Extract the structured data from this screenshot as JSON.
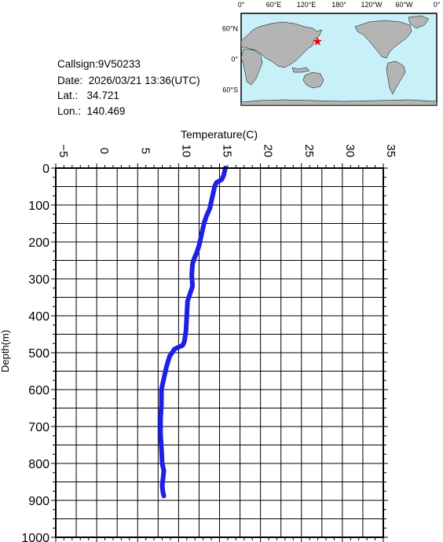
{
  "station": {
    "callsign_label": "Callsign:",
    "callsign": "9V50233",
    "date_label": "Date:",
    "date": "2026/03/21 13:36(UTC)",
    "lat_label": "Lat.:",
    "lat": "34.721",
    "lon_label": "Lon.:",
    "lon": "140.469"
  },
  "map": {
    "lon_labels": [
      "0°",
      "60°E",
      "120°E",
      "180°",
      "120°W",
      "60°W",
      "0°"
    ],
    "lat_labels": [
      "60°N",
      "0°",
      "60°S"
    ],
    "marker": {
      "lon": 140.469,
      "lat": 34.721,
      "symbol": "star",
      "color": "#ff0000"
    },
    "ocean_color": "#c8f0f8",
    "land_color": "#b4b4b4"
  },
  "chart_data": {
    "type": "line",
    "xlabel": "Temperature(C)",
    "ylabel": "Depth(m)",
    "xlim": [
      -5,
      35
    ],
    "ylim": [
      0,
      1000
    ],
    "y_inverted": true,
    "x_axis_position": "top",
    "xticks": [
      -5,
      0,
      5,
      10,
      15,
      20,
      25,
      30,
      35
    ],
    "yticks": [
      0,
      100,
      200,
      300,
      400,
      500,
      600,
      700,
      800,
      900,
      1000
    ],
    "grid": true,
    "series": [
      {
        "color": "#1f1fe6",
        "points": [
          [
            15.7,
            0
          ],
          [
            15.6,
            10
          ],
          [
            15.5,
            20
          ],
          [
            15.3,
            30
          ],
          [
            14.6,
            40
          ],
          [
            14.4,
            50
          ],
          [
            14.2,
            70
          ],
          [
            14.0,
            90
          ],
          [
            13.8,
            110
          ],
          [
            13.4,
            130
          ],
          [
            13.1,
            150
          ],
          [
            12.9,
            170
          ],
          [
            12.7,
            190
          ],
          [
            12.5,
            210
          ],
          [
            12.2,
            230
          ],
          [
            11.9,
            245
          ],
          [
            11.7,
            260
          ],
          [
            11.6,
            290
          ],
          [
            11.7,
            320
          ],
          [
            11.4,
            340
          ],
          [
            11.1,
            360
          ],
          [
            11.0,
            400
          ],
          [
            10.9,
            440
          ],
          [
            10.7,
            470
          ],
          [
            10.5,
            480
          ],
          [
            9.5,
            490
          ],
          [
            8.9,
            510
          ],
          [
            8.5,
            540
          ],
          [
            8.2,
            570
          ],
          [
            7.9,
            600
          ],
          [
            7.9,
            640
          ],
          [
            7.8,
            680
          ],
          [
            7.8,
            720
          ],
          [
            7.9,
            760
          ],
          [
            8.0,
            800
          ],
          [
            8.2,
            820
          ],
          [
            8.1,
            840
          ],
          [
            8.0,
            860
          ],
          [
            8.1,
            880
          ],
          [
            8.2,
            888
          ]
        ]
      }
    ]
  }
}
